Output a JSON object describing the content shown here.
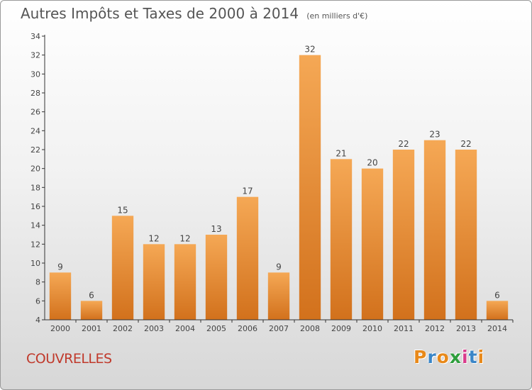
{
  "chart_data": {
    "type": "bar",
    "title": "Autres Impôts et Taxes de 2000 à 2014",
    "subtitle": "(en milliers d'€)",
    "categories": [
      "2000",
      "2001",
      "2002",
      "2003",
      "2004",
      "2005",
      "2006",
      "2007",
      "2008",
      "2009",
      "2010",
      "2011",
      "2012",
      "2013",
      "2014"
    ],
    "values": [
      9,
      6,
      15,
      12,
      12,
      13,
      17,
      9,
      32,
      21,
      20,
      22,
      23,
      22,
      6
    ],
    "ylim": [
      4,
      34
    ],
    "yticks": [
      4,
      6,
      8,
      10,
      12,
      14,
      16,
      18,
      20,
      22,
      24,
      26,
      28,
      30,
      32,
      34
    ],
    "xlabel": "",
    "ylabel": "",
    "grid": false,
    "bar_color_top": "#f5a855",
    "bar_color_bottom": "#d2711c"
  },
  "footer": {
    "town": "COUVRELLES",
    "logo_letters": [
      "P",
      "r",
      "o",
      "x",
      "i",
      "t",
      "i"
    ],
    "logo_colors": [
      "#e8891a",
      "#3a86c8",
      "#e8891a",
      "#2e9e3c",
      "#d93c8c",
      "#3a86c8",
      "#e8891a"
    ]
  }
}
